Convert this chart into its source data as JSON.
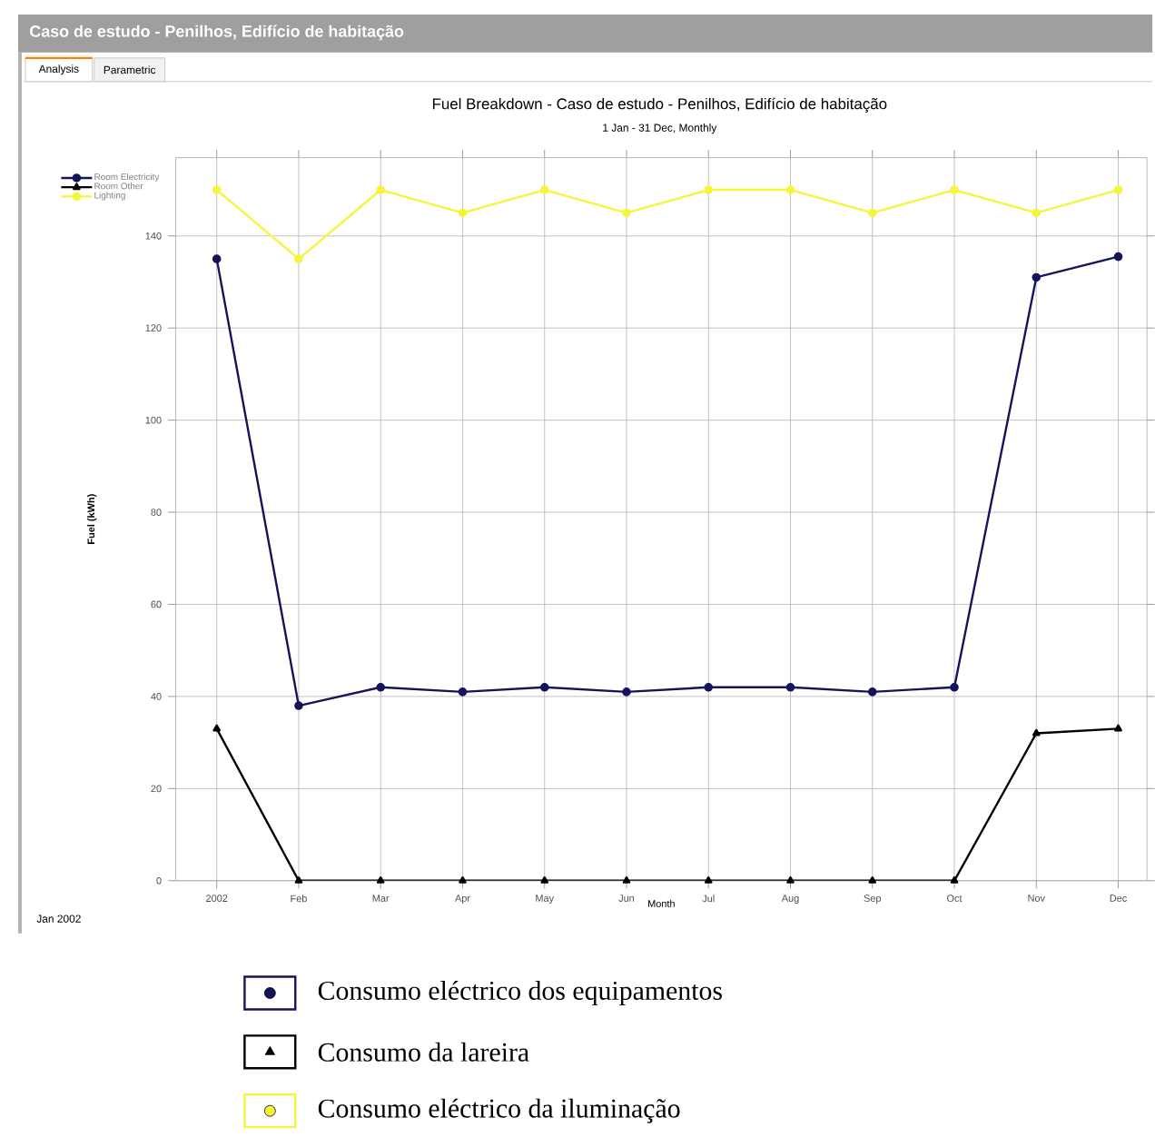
{
  "chart_data": {
    "type": "line",
    "title": "Fuel Breakdown - Caso de estudo - Penilhos, Edifício de habitação",
    "subtitle": "1 Jan - 31 Dec, Monthly",
    "xlabel": "Month",
    "ylabel": "Fuel (kWh)",
    "categories": [
      "2002",
      "Feb",
      "Mar",
      "Apr",
      "May",
      "Jun",
      "Jul",
      "Aug",
      "Sep",
      "Oct",
      "Nov",
      "Dec"
    ],
    "series": [
      {
        "name": "Room Electricity",
        "color": "#14145a",
        "marker": "circle",
        "values": [
          135,
          38,
          42,
          41,
          42,
          41,
          42,
          42,
          41,
          42,
          131,
          135.5
        ]
      },
      {
        "name": "Room Other",
        "color": "#000000",
        "marker": "triangle",
        "values": [
          33,
          0,
          0,
          0,
          0,
          0,
          0,
          0,
          0,
          0,
          32,
          33
        ]
      },
      {
        "name": "Lighting",
        "color": "#f5f53c",
        "marker": "circle",
        "values": [
          150,
          135,
          150,
          145,
          150,
          145,
          150,
          150,
          145,
          150,
          145,
          150
        ]
      }
    ],
    "ylim": [
      0,
      157
    ],
    "yticks": [
      0,
      20,
      40,
      60,
      80,
      100,
      120,
      140
    ],
    "grid": true,
    "legend": "top left",
    "line_style": "solid",
    "annotations": [
      "Caso de estudo - Penilhos, Edifício de habitação",
      "Analysis",
      "Parametric",
      "Jan 2002",
      "Consumo eléctrico dos equipamentos",
      "Consumo da lareira",
      "Consumo eléctrico da iluminação"
    ]
  }
}
